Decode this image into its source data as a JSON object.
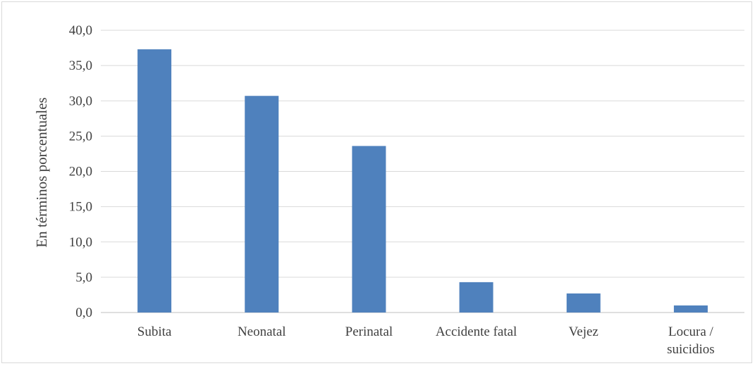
{
  "chart_data": {
    "type": "bar",
    "categories": [
      [
        "Subita"
      ],
      [
        "Neonatal"
      ],
      [
        "Perinatal"
      ],
      [
        "Accidente fatal"
      ],
      [
        "Vejez"
      ],
      [
        "Locura /",
        "suicidios"
      ]
    ],
    "values": [
      37.3,
      30.7,
      23.6,
      4.3,
      2.7,
      1.0
    ],
    "ylabel": "En términos porcentuales",
    "ylim": [
      0,
      40
    ],
    "yticks": [
      "0,0",
      "5,0",
      "10,0",
      "15,0",
      "20,0",
      "25,0",
      "30,0",
      "35,0",
      "40,0"
    ],
    "grid": true,
    "legend": "none",
    "colors": {
      "bar": "#4f81bd",
      "grid": "#d9d9d9",
      "axis": "#bfbfbf",
      "text": "#404040"
    }
  }
}
